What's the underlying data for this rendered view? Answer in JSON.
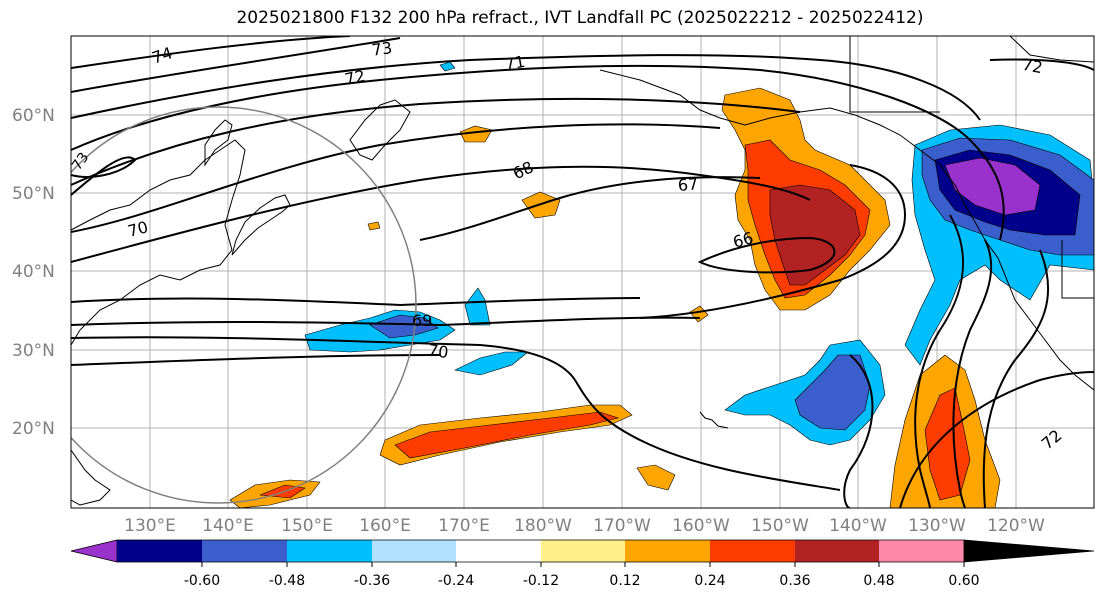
{
  "title": "2025021800 F132 200 hPa refract., IVT Landfall PC (2025022212 - 2025022412)",
  "lat_labels": [
    "60°N",
    "50°N",
    "40°N",
    "30°N",
    "20°N"
  ],
  "lon_labels": [
    "130°E",
    "140°E",
    "150°E",
    "160°E",
    "170°E",
    "180°W",
    "170°W",
    "160°W",
    "150°W",
    "140°W",
    "130°W",
    "120°W"
  ],
  "contour_labels": [
    "74",
    "73",
    "72",
    "71",
    "72",
    "70",
    "68",
    "67",
    "66",
    "69",
    "70",
    "72",
    "73"
  ],
  "colorbar": {
    "tick_labels": [
      "-0.60",
      "-0.48",
      "-0.36",
      "-0.24",
      "-0.12",
      "0.12",
      "0.24",
      "0.36",
      "0.48",
      "0.60"
    ],
    "colors": [
      "#9932cc",
      "#00008b",
      "#3a5fcd",
      "#00bfff",
      "#b0e2ff",
      "#ffffff",
      "#fff08a",
      "#ffa500",
      "#ff3c00",
      "#b22222",
      "#ff88aa"
    ]
  }
}
